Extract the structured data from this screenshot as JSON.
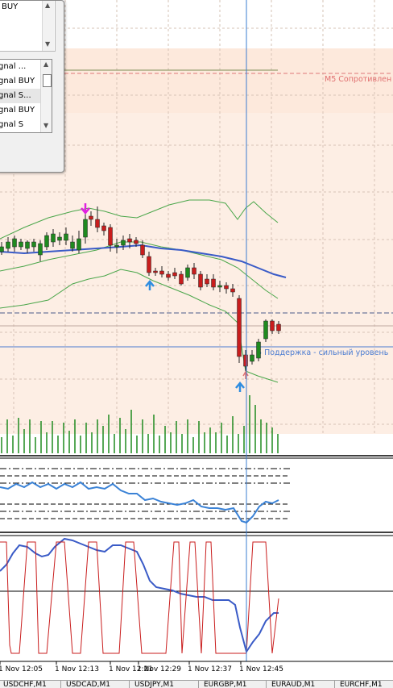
{
  "dialog": {
    "top_item": "BUY",
    "signal_list": [
      "gnal ...",
      "gnal BUY",
      "gnal S...",
      "gnal BUY",
      "gnal S"
    ],
    "selected_index": 2
  },
  "chart": {
    "resistance_label": "M5 Сопротивлен",
    "support_label": "5 Поддержка - сильный уровень",
    "background_zone_color": "#fde9dc",
    "bull_color": "#1f8a1f",
    "bear_color": "#c91d1d",
    "ma_color": "#3a5bc7",
    "band_color": "#4aa64a",
    "up_arrow_color": "#2f8de0",
    "down_arrow_color": "#e020e0",
    "time_labels": [
      "1 Nov 12:05",
      "1 Nov 12:13",
      "1 Nov 12:21",
      "1 Nov 12:29",
      "1 Nov 12:37",
      "1 Nov 12:45"
    ]
  },
  "tabs": [
    "USDCHF,M1",
    "USDCAD,M1",
    "USDJPY,M1",
    "EURGBP,M1",
    "EURAUD,M1",
    "EURCHF,M1"
  ]
}
